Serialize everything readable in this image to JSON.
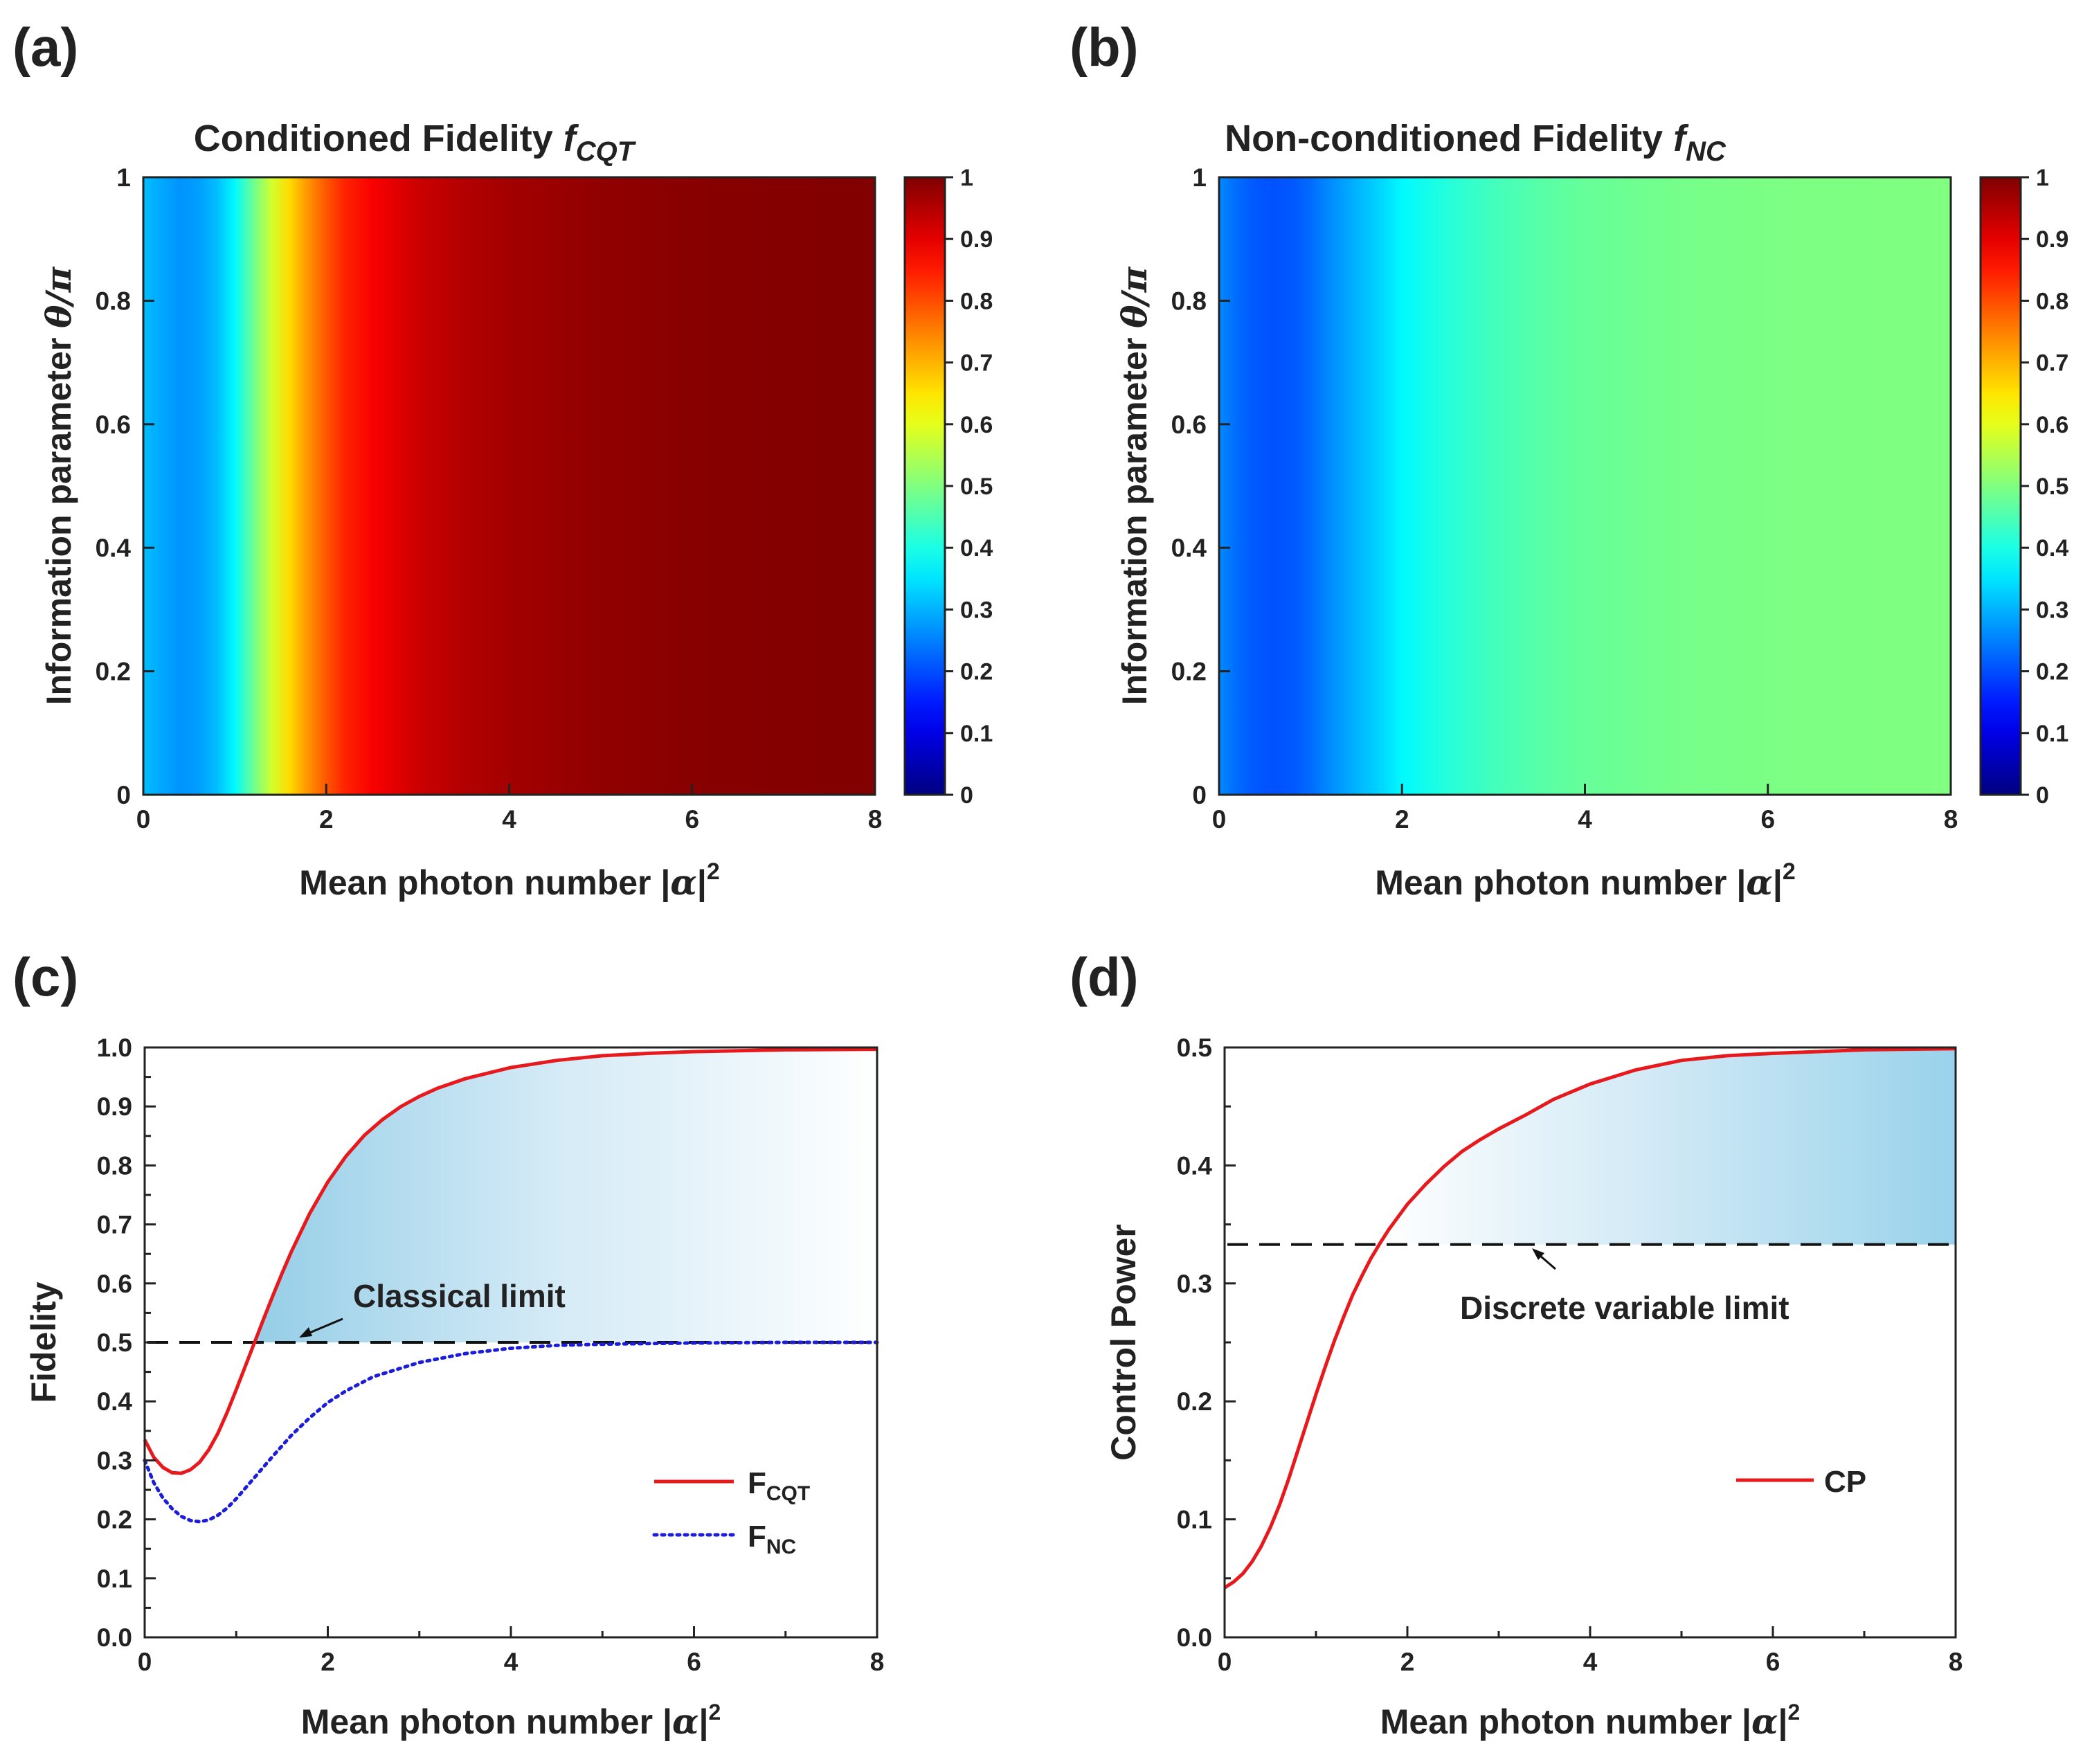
{
  "figure": {
    "background": "#ffffff"
  },
  "chart_data": [
    {
      "id": "a",
      "type": "heatmap",
      "panel_label": "(a)",
      "title_main": "Conditioned Fidelity ",
      "title_italic": "f",
      "title_sub": "CQT",
      "xlabel_main": "Mean photon number |",
      "xlabel_greek": "α",
      "xlabel_end": "|",
      "xlabel_sup": "2",
      "ylabel_main": "Information parameter ",
      "ylabel_greek": "θ/π",
      "xlim": [
        0,
        8
      ],
      "ylim": [
        0,
        1
      ],
      "xticks": [
        0,
        2,
        4,
        6,
        8
      ],
      "yticks": [
        0,
        0.2,
        0.4,
        0.6,
        0.8,
        1
      ],
      "ytick_labels": [
        "0",
        "0.2",
        "0.4",
        "0.6",
        "0.8",
        "1"
      ],
      "colorbar": {
        "range": [
          0,
          1
        ],
        "ticks": [
          "0",
          "0.1",
          "0.2",
          "0.3",
          "0.4",
          "0.5",
          "0.6",
          "0.7",
          "0.8",
          "0.9",
          "1"
        ]
      },
      "profile_x": [
        0,
        0.2,
        0.4,
        0.6,
        0.8,
        1.0,
        1.2,
        1.4,
        1.6,
        1.8,
        2.0,
        2.2,
        2.5,
        3.0,
        3.5,
        4.0,
        5.0,
        6.0,
        7.0,
        8.0
      ],
      "profile_value": [
        0.31,
        0.29,
        0.27,
        0.28,
        0.31,
        0.37,
        0.48,
        0.58,
        0.66,
        0.73,
        0.79,
        0.84,
        0.88,
        0.925,
        0.95,
        0.965,
        0.983,
        0.992,
        0.996,
        0.998
      ]
    },
    {
      "id": "b",
      "type": "heatmap",
      "panel_label": "(b)",
      "title_main": "Non-conditioned Fidelity ",
      "title_italic": "f",
      "title_sub": "NC",
      "xlabel_main": "Mean photon number |",
      "xlabel_greek": "α",
      "xlabel_end": "|",
      "xlabel_sup": "2",
      "ylabel_main": "Information parameter ",
      "ylabel_greek": "θ/π",
      "xlim": [
        0,
        8
      ],
      "ylim": [
        0,
        1
      ],
      "xticks": [
        0,
        2,
        4,
        6,
        8
      ],
      "yticks": [
        0,
        0.2,
        0.4,
        0.6,
        0.8,
        1
      ],
      "ytick_labels": [
        "0",
        "0.2",
        "0.4",
        "0.6",
        "0.8",
        "1"
      ],
      "colorbar": {
        "range": [
          0,
          1
        ],
        "ticks": [
          "0",
          "0.1",
          "0.2",
          "0.3",
          "0.4",
          "0.5",
          "0.6",
          "0.7",
          "0.8",
          "0.9",
          "1"
        ]
      },
      "profile_x": [
        0,
        0.2,
        0.4,
        0.6,
        0.8,
        1.0,
        1.2,
        1.5,
        1.8,
        2.0,
        2.5,
        3.0,
        3.5,
        4.0,
        5.0,
        6.0,
        7.0,
        8.0
      ],
      "profile_value": [
        0.26,
        0.23,
        0.21,
        0.205,
        0.21,
        0.23,
        0.26,
        0.3,
        0.34,
        0.37,
        0.41,
        0.44,
        0.46,
        0.475,
        0.49,
        0.496,
        0.498,
        0.5
      ]
    },
    {
      "id": "c",
      "type": "line",
      "panel_label": "(c)",
      "xlabel_main": "Mean photon number |",
      "xlabel_greek": "α",
      "xlabel_end": "|",
      "xlabel_sup": "2",
      "ylabel": "Fidelity",
      "xlim": [
        0,
        8
      ],
      "ylim": [
        0,
        1
      ],
      "xticks": [
        0,
        2,
        4,
        6,
        8
      ],
      "yticks": [
        0,
        0.1,
        0.2,
        0.3,
        0.4,
        0.5,
        0.6,
        0.7,
        0.8,
        0.9,
        1.0
      ],
      "ytick_labels": [
        "0.0",
        "0.1",
        "0.2",
        "0.3",
        "0.4",
        "0.5",
        "0.6",
        "0.7",
        "0.8",
        "0.9",
        "1.0"
      ],
      "limit_value": 0.5,
      "annotation": "Classical limit",
      "series": [
        {
          "name_main": "F",
          "name_sub": "CQT",
          "color": "#e8191c",
          "style": "solid",
          "x": [
            0,
            0.1,
            0.2,
            0.3,
            0.4,
            0.5,
            0.6,
            0.7,
            0.8,
            0.9,
            1.0,
            1.1,
            1.2,
            1.3,
            1.4,
            1.5,
            1.6,
            1.8,
            2.0,
            2.2,
            2.4,
            2.6,
            2.8,
            3.0,
            3.2,
            3.5,
            4.0,
            4.5,
            5.0,
            5.5,
            6.0,
            7.0,
            8.0
          ],
          "y": [
            0.335,
            0.305,
            0.288,
            0.279,
            0.278,
            0.284,
            0.297,
            0.318,
            0.346,
            0.381,
            0.42,
            0.46,
            0.5,
            0.54,
            0.579,
            0.617,
            0.653,
            0.718,
            0.772,
            0.816,
            0.851,
            0.878,
            0.9,
            0.917,
            0.931,
            0.947,
            0.966,
            0.978,
            0.986,
            0.99,
            0.993,
            0.996,
            0.997
          ]
        },
        {
          "name_main": "F",
          "name_sub": "NC",
          "color": "#1c1cdb",
          "style": "dotted",
          "x": [
            0,
            0.1,
            0.2,
            0.3,
            0.4,
            0.5,
            0.6,
            0.7,
            0.8,
            0.9,
            1.0,
            1.2,
            1.4,
            1.6,
            1.8,
            2.0,
            2.2,
            2.5,
            3.0,
            3.5,
            4.0,
            4.5,
            5.0,
            5.5,
            6.0,
            7.0,
            8.0
          ],
          "y": [
            0.3,
            0.262,
            0.236,
            0.218,
            0.205,
            0.198,
            0.196,
            0.199,
            0.207,
            0.219,
            0.235,
            0.271,
            0.307,
            0.342,
            0.372,
            0.398,
            0.418,
            0.442,
            0.466,
            0.481,
            0.49,
            0.495,
            0.497,
            0.498,
            0.499,
            0.5,
            0.5
          ]
        }
      ]
    },
    {
      "id": "d",
      "type": "line",
      "panel_label": "(d)",
      "xlabel_main": "Mean photon number |",
      "xlabel_greek": "α",
      "xlabel_end": "|",
      "xlabel_sup": "2",
      "ylabel": "Control Power",
      "xlim": [
        0,
        8
      ],
      "ylim": [
        0,
        0.5
      ],
      "xticks": [
        0,
        2,
        4,
        6,
        8
      ],
      "yticks": [
        0,
        0.1,
        0.2,
        0.3,
        0.4,
        0.5
      ],
      "ytick_labels": [
        "0.0",
        "0.1",
        "0.2",
        "0.3",
        "0.4",
        "0.5"
      ],
      "limit_value": 0.333,
      "annotation": "Discrete variable limit",
      "series": [
        {
          "name_main": "CP",
          "name_sub": "",
          "color": "#e8191c",
          "style": "solid",
          "x": [
            0,
            0.1,
            0.2,
            0.3,
            0.4,
            0.5,
            0.6,
            0.7,
            0.8,
            0.9,
            1.0,
            1.1,
            1.2,
            1.3,
            1.4,
            1.5,
            1.6,
            1.7,
            1.8,
            2.0,
            2.2,
            2.4,
            2.6,
            2.8,
            3.0,
            3.3,
            3.6,
            4.0,
            4.5,
            5.0,
            5.5,
            6.0,
            7.0,
            8.0
          ],
          "y": [
            0.042,
            0.047,
            0.054,
            0.064,
            0.077,
            0.093,
            0.112,
            0.134,
            0.158,
            0.182,
            0.206,
            0.229,
            0.251,
            0.271,
            0.29,
            0.306,
            0.321,
            0.334,
            0.346,
            0.367,
            0.384,
            0.399,
            0.412,
            0.422,
            0.431,
            0.443,
            0.456,
            0.469,
            0.481,
            0.489,
            0.493,
            0.495,
            0.498,
            0.499
          ]
        }
      ]
    }
  ]
}
